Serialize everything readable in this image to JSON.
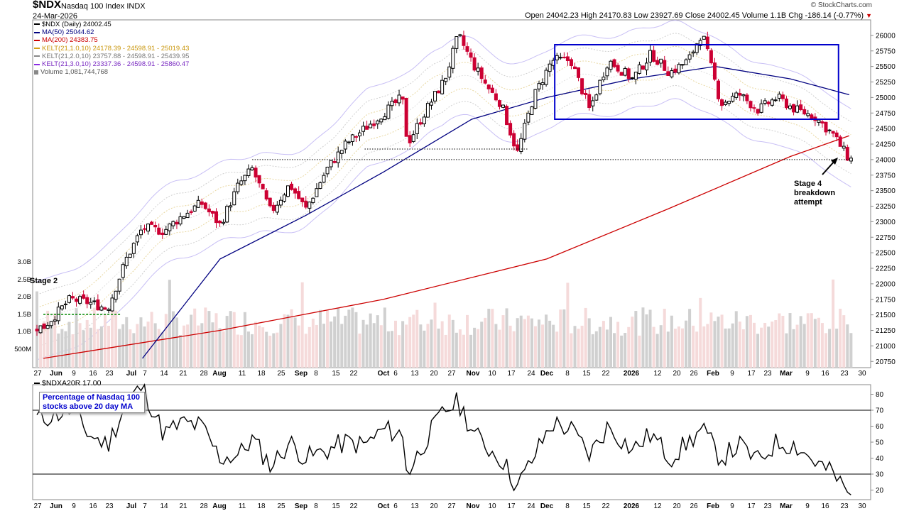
{
  "header": {
    "symbol": "$NDX",
    "name": "Nasdaq 100 Index",
    "exchange": "INDX",
    "date": "24-Mar-2026",
    "ohlc_text": "Open 24042.23  High 24170.83  Low 23927.69  Close 24002.45  Volume 1.1B  Chg -186.14 (-0.77%)",
    "watermark": "© StockCharts.com",
    "change_icon": "down-triangle-icon"
  },
  "legend": [
    {
      "text": "$NDX (Daily) 24002.45",
      "color": "#000000"
    },
    {
      "text": "MA(50) 25044.62",
      "color": "#000080"
    },
    {
      "text": "MA(200) 24383.75",
      "color": "#cc0000"
    },
    {
      "text": "KELT(21,1.0,10) 24178.39 - 24598.91 - 25019.43",
      "color": "#d4a017"
    },
    {
      "text": "KELT(21,2.0,10) 23757.88 - 24598.91 - 25439.95",
      "color": "#888888"
    },
    {
      "text": "KELT(21,3.0,10) 23337.36 - 24598.91 - 25860.47",
      "color": "#8a2be2"
    },
    {
      "text": "Volume 1,081,744,768",
      "color": "#555555"
    }
  ],
  "annotations": {
    "stage2": "Stage 2",
    "stage4_lines": [
      "Stage 4",
      "breakdown",
      "attempt"
    ],
    "lower_box_lines": [
      "Percentage of Nasdaq 100",
      "stocks above 20 day MA"
    ]
  },
  "lower_legend": "$NDXA20R 17.00",
  "colors": {
    "up_candle": "#000000",
    "down_candle": "#cc0033",
    "ma50": "#000080",
    "ma200": "#cc0000",
    "kelt_outer": "#c8bff5",
    "kelt_mid": "#d9d9d9",
    "consolidation_box": "#0000cc",
    "volume_up": "#d0d0d0",
    "volume_down": "#f5dada",
    "stage2_line": "#008800"
  },
  "chart_data": [
    {
      "type": "candlestick",
      "title": "$NDX (Daily)",
      "y_axis_ticks": [
        20750,
        21000,
        21250,
        21500,
        21750,
        22000,
        22250,
        22500,
        22750,
        23000,
        23250,
        23500,
        23750,
        24000,
        24250,
        24500,
        24750,
        25000,
        25250,
        25500,
        25750,
        26000
      ],
      "y_range": [
        20650,
        26250
      ],
      "x_axis_labels": [
        "27",
        "Jun",
        "9",
        "16",
        "23",
        "Jul",
        "7",
        "14",
        "21",
        "28",
        "Aug",
        "11",
        "18",
        "25",
        "Sep",
        "8",
        "15",
        "22",
        "Oct",
        "6",
        "13",
        "20",
        "27",
        "Nov",
        "10",
        "17",
        "24",
        "Dec",
        "8",
        "15",
        "22",
        "2026",
        "12",
        "20",
        "26",
        "Feb",
        "9",
        "17",
        "23",
        "Mar",
        "9",
        "16",
        "23",
        "30"
      ],
      "volume_axis_ticks": [
        "500M",
        "1.0B",
        "1.5B",
        "2.0B",
        "2.5B",
        "3.0B"
      ],
      "close_series_approx": [
        {
          "date": "2025-05-27",
          "close": 21300
        },
        {
          "date": "2025-06-06",
          "close": 21750
        },
        {
          "date": "2025-06-13",
          "close": 21700
        },
        {
          "date": "2025-06-20",
          "close": 21600
        },
        {
          "date": "2025-06-27",
          "close": 22400
        },
        {
          "date": "2025-07-03",
          "close": 22900
        },
        {
          "date": "2025-07-11",
          "close": 22850
        },
        {
          "date": "2025-07-18",
          "close": 23100
        },
        {
          "date": "2025-07-25",
          "close": 23300
        },
        {
          "date": "2025-08-01",
          "close": 22950
        },
        {
          "date": "2025-08-08",
          "close": 23600
        },
        {
          "date": "2025-08-13",
          "close": 23850
        },
        {
          "date": "2025-08-20",
          "close": 23150
        },
        {
          "date": "2025-08-27",
          "close": 23600
        },
        {
          "date": "2025-09-02",
          "close": 23200
        },
        {
          "date": "2025-09-10",
          "close": 23850
        },
        {
          "date": "2025-09-17",
          "close": 24250
        },
        {
          "date": "2025-09-24",
          "close": 24500
        },
        {
          "date": "2025-10-01",
          "close": 24750
        },
        {
          "date": "2025-10-08",
          "close": 25000
        },
        {
          "date": "2025-10-10",
          "close": 24250
        },
        {
          "date": "2025-10-17",
          "close": 24800
        },
        {
          "date": "2025-10-24",
          "close": 25300
        },
        {
          "date": "2025-10-29",
          "close": 26000
        },
        {
          "date": "2025-11-04",
          "close": 25500
        },
        {
          "date": "2025-11-10",
          "close": 25100
        },
        {
          "date": "2025-11-14",
          "close": 24900
        },
        {
          "date": "2025-11-20",
          "close": 24100
        },
        {
          "date": "2025-11-26",
          "close": 25000
        },
        {
          "date": "2025-12-03",
          "close": 25600
        },
        {
          "date": "2025-12-10",
          "close": 25600
        },
        {
          "date": "2025-12-17",
          "close": 24800
        },
        {
          "date": "2025-12-24",
          "close": 25600
        },
        {
          "date": "2026-01-02",
          "close": 25300
        },
        {
          "date": "2026-01-09",
          "close": 25700
        },
        {
          "date": "2026-01-16",
          "close": 25400
        },
        {
          "date": "2026-01-23",
          "close": 25600
        },
        {
          "date": "2026-01-28",
          "close": 26050
        },
        {
          "date": "2026-02-04",
          "close": 24900
        },
        {
          "date": "2026-02-11",
          "close": 25050
        },
        {
          "date": "2026-02-18",
          "close": 24800
        },
        {
          "date": "2026-02-25",
          "close": 25000
        },
        {
          "date": "2026-03-04",
          "close": 24800
        },
        {
          "date": "2026-03-11",
          "close": 24700
        },
        {
          "date": "2026-03-18",
          "close": 24400
        },
        {
          "date": "2026-03-24",
          "close": 24002.45
        }
      ],
      "ma50_approx": [
        {
          "date": "2025-07-03",
          "close": 20800
        },
        {
          "date": "2025-08-01",
          "close": 22400
        },
        {
          "date": "2025-09-02",
          "close": 23100
        },
        {
          "date": "2025-10-01",
          "close": 23800
        },
        {
          "date": "2025-11-03",
          "close": 24650
        },
        {
          "date": "2025-12-01",
          "close": 25000
        },
        {
          "date": "2026-01-02",
          "close": 25300
        },
        {
          "date": "2026-02-02",
          "close": 25500
        },
        {
          "date": "2026-03-02",
          "close": 25300
        },
        {
          "date": "2026-03-24",
          "close": 25044.62
        }
      ],
      "ma200_approx": [
        {
          "date": "2025-05-27",
          "close": 20800
        },
        {
          "date": "2025-08-01",
          "close": 21250
        },
        {
          "date": "2025-10-01",
          "close": 21750
        },
        {
          "date": "2025-12-01",
          "close": 22400
        },
        {
          "date": "2026-01-15",
          "close": 23200
        },
        {
          "date": "2026-03-02",
          "close": 24050
        },
        {
          "date": "2026-03-24",
          "close": 24383.75
        }
      ],
      "consolidation_box": {
        "from": "2025-12-04",
        "to": "2026-03-20",
        "low": 24650,
        "high": 25850
      },
      "support_levels": [
        {
          "from": "2025-08-13",
          "to": "2026-03-24",
          "value": 24000
        },
        {
          "from": "2025-09-24",
          "to": "2025-11-24",
          "value": 24170
        }
      ],
      "stage2_level": {
        "from": "2025-05-27",
        "to": "2025-06-25",
        "value_volume": "1.5B"
      }
    },
    {
      "type": "line",
      "title": "$NDXA20R",
      "last_value": 17.0,
      "y_axis_ticks": [
        20,
        30,
        40,
        50,
        60,
        70,
        80
      ],
      "y_range": [
        14,
        86
      ],
      "reference_lines": [
        30,
        70
      ],
      "series_approx": [
        {
          "date": "2025-05-27",
          "close": 65
        },
        {
          "date": "2025-06-06",
          "close": 70
        },
        {
          "date": "2025-06-13",
          "close": 55
        },
        {
          "date": "2025-06-20",
          "close": 48
        },
        {
          "date": "2025-06-27",
          "close": 75
        },
        {
          "date": "2025-07-03",
          "close": 85
        },
        {
          "date": "2025-07-11",
          "close": 55
        },
        {
          "date": "2025-07-18",
          "close": 62
        },
        {
          "date": "2025-07-25",
          "close": 60
        },
        {
          "date": "2025-08-01",
          "close": 40
        },
        {
          "date": "2025-08-08",
          "close": 42
        },
        {
          "date": "2025-08-13",
          "close": 52
        },
        {
          "date": "2025-08-20",
          "close": 35
        },
        {
          "date": "2025-08-27",
          "close": 50
        },
        {
          "date": "2025-09-02",
          "close": 40
        },
        {
          "date": "2025-09-10",
          "close": 45
        },
        {
          "date": "2025-09-17",
          "close": 50
        },
        {
          "date": "2025-09-24",
          "close": 48
        },
        {
          "date": "2025-10-01",
          "close": 58
        },
        {
          "date": "2025-10-08",
          "close": 55
        },
        {
          "date": "2025-10-10",
          "close": 30
        },
        {
          "date": "2025-10-17",
          "close": 52
        },
        {
          "date": "2025-10-24",
          "close": 70
        },
        {
          "date": "2025-10-29",
          "close": 75
        },
        {
          "date": "2025-11-04",
          "close": 55
        },
        {
          "date": "2025-11-10",
          "close": 45
        },
        {
          "date": "2025-11-14",
          "close": 40
        },
        {
          "date": "2025-11-20",
          "close": 22
        },
        {
          "date": "2025-11-26",
          "close": 40
        },
        {
          "date": "2025-12-03",
          "close": 62
        },
        {
          "date": "2025-12-10",
          "close": 58
        },
        {
          "date": "2025-12-17",
          "close": 42
        },
        {
          "date": "2025-12-24",
          "close": 60
        },
        {
          "date": "2026-01-02",
          "close": 45
        },
        {
          "date": "2026-01-09",
          "close": 55
        },
        {
          "date": "2026-01-16",
          "close": 40
        },
        {
          "date": "2026-01-23",
          "close": 50
        },
        {
          "date": "2026-01-28",
          "close": 58
        },
        {
          "date": "2026-02-04",
          "close": 40
        },
        {
          "date": "2026-02-11",
          "close": 48
        },
        {
          "date": "2026-02-18",
          "close": 38
        },
        {
          "date": "2026-02-25",
          "close": 50
        },
        {
          "date": "2026-03-04",
          "close": 48
        },
        {
          "date": "2026-03-11",
          "close": 38
        },
        {
          "date": "2026-03-18",
          "close": 30
        },
        {
          "date": "2026-03-24",
          "close": 17
        }
      ]
    }
  ]
}
